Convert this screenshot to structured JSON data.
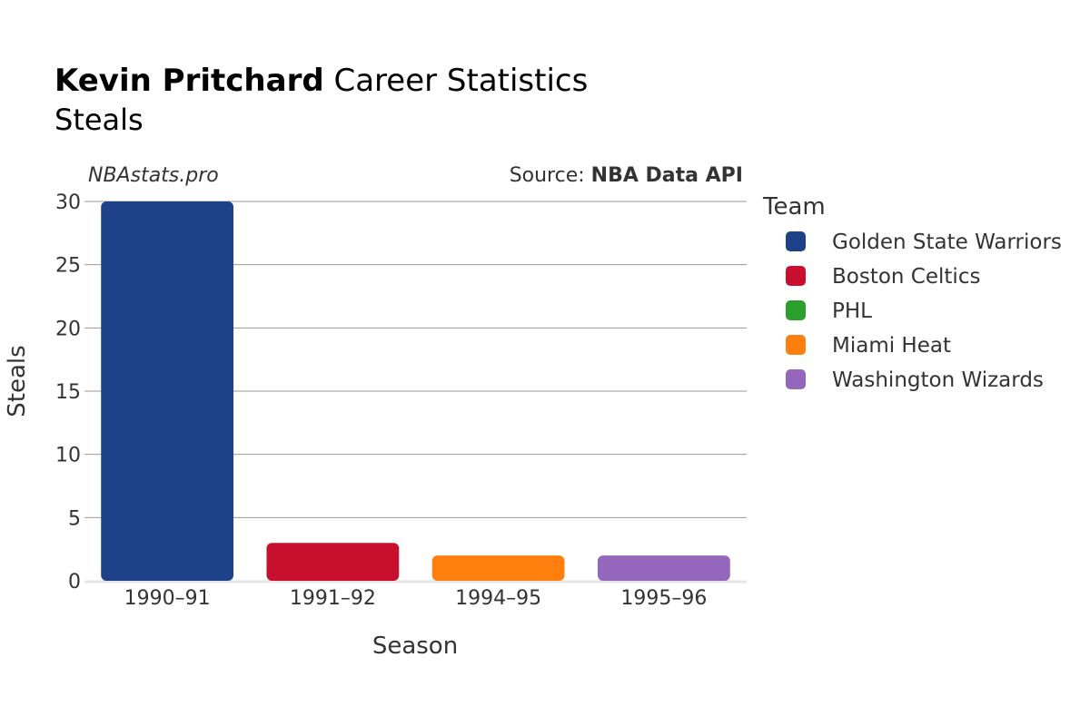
{
  "header": {
    "player": "Kevin Pritchard",
    "title_rest": " Career Statistics",
    "subtitle": "Steals"
  },
  "watermark": "NBAstats.pro",
  "source": {
    "prefix": "Source: ",
    "name": "NBA Data API"
  },
  "legend": {
    "title": "Team",
    "items": [
      {
        "label": "Golden State Warriors",
        "color": "#1d428a"
      },
      {
        "label": "Boston Celtics",
        "color": "#c8102e"
      },
      {
        "label": "PHL",
        "color": "#2ca02c"
      },
      {
        "label": "Miami Heat",
        "color": "#ff7f0e"
      },
      {
        "label": "Washington Wizards",
        "color": "#9467bd"
      }
    ]
  },
  "chart_data": {
    "type": "bar",
    "title": "Kevin Pritchard Career Statistics",
    "subtitle": "Steals",
    "xlabel": "Season",
    "ylabel": "Steals",
    "categories": [
      "1990–91",
      "1991–92",
      "1994–95",
      "1995–96"
    ],
    "values": [
      30,
      3,
      2,
      2
    ],
    "bar_colors": [
      "#1d428a",
      "#c8102e",
      "#ff7f0e",
      "#9467bd"
    ],
    "ylim": [
      0,
      30
    ],
    "yticks": [
      0,
      5,
      10,
      15,
      20,
      25,
      30
    ],
    "grid": true,
    "legend_position": "right"
  }
}
